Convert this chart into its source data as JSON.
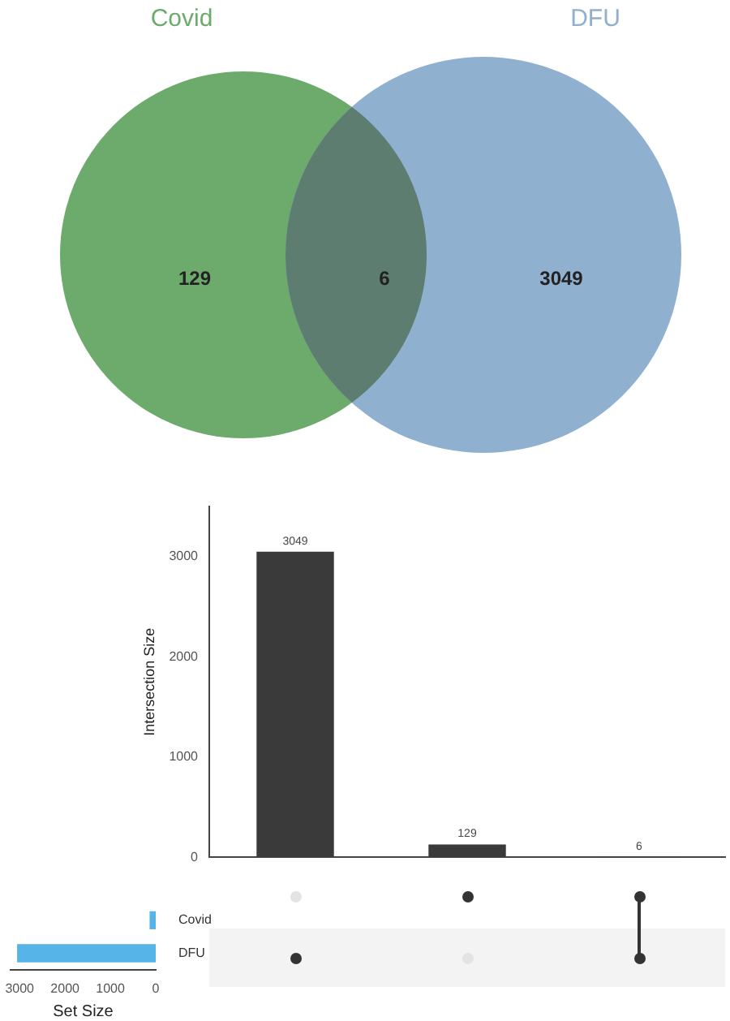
{
  "chart_data": [
    {
      "type": "other",
      "categories": [
        null,
        null,
        null
      ],
      "colors": [
        "#6dab6d",
        "#5d7d70",
        "#8fb0cf"
      ],
      "values": [
        129,
        6,
        3049
      ],
      "data_labels": true,
      "annotations": [
        "Covid",
        "DFU"
      ]
    },
    {
      "type": "bar",
      "categories": [
        null,
        null,
        null
      ],
      "values": [
        3049,
        129,
        6
      ],
      "color": "#3a3a3a",
      "ylabel": "Intersection Size",
      "ylim": [
        0,
        3500
      ],
      "yticks": [
        0,
        1000,
        2000,
        3000
      ],
      "data_labels": true,
      "tick_labels": "y"
    },
    {
      "type": "bar",
      "orientation": "horizontal",
      "categories": [
        "Covid",
        "DFU"
      ],
      "values": [
        135,
        3055
      ],
      "color": "#56b4e9",
      "xlabel": "Set Size",
      "xlim": [
        3200,
        0
      ],
      "xticks": [
        3000,
        2000,
        1000,
        0
      ]
    }
  ]
}
